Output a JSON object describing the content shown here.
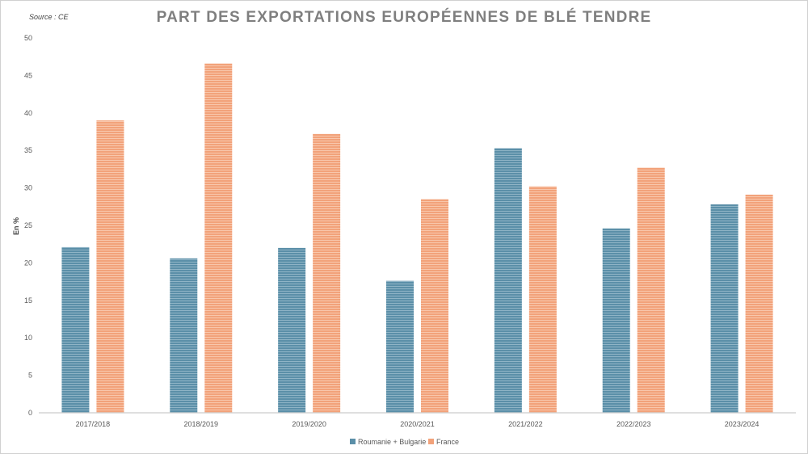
{
  "chart_data": {
    "type": "bar",
    "title": "PART DES EXPORTATIONS EUROPÉENNES DE BLÉ TENDRE",
    "source": "Source : CE",
    "xlabel": "",
    "ylabel": "En %",
    "ylim": [
      0,
      50
    ],
    "yticks": [
      "0",
      "5",
      "10",
      "15",
      "20",
      "25",
      "30",
      "35",
      "40",
      "45",
      "50"
    ],
    "categories": [
      "2017/2018",
      "2018/2019",
      "2019/2020",
      "2020/2021",
      "2021/2022",
      "2022/2023",
      "2023/2024"
    ],
    "series": [
      {
        "name": "Roumanie + Bulgarie",
        "color": "#5b8fa8",
        "values": [
          22.1,
          20.6,
          22.0,
          17.6,
          35.3,
          24.6,
          27.8
        ]
      },
      {
        "name": "France",
        "color": "#f2a27a",
        "values": [
          39.0,
          46.6,
          37.2,
          28.5,
          30.2,
          32.7,
          29.1
        ]
      }
    ],
    "grid": false,
    "legend": "bottom-center"
  }
}
